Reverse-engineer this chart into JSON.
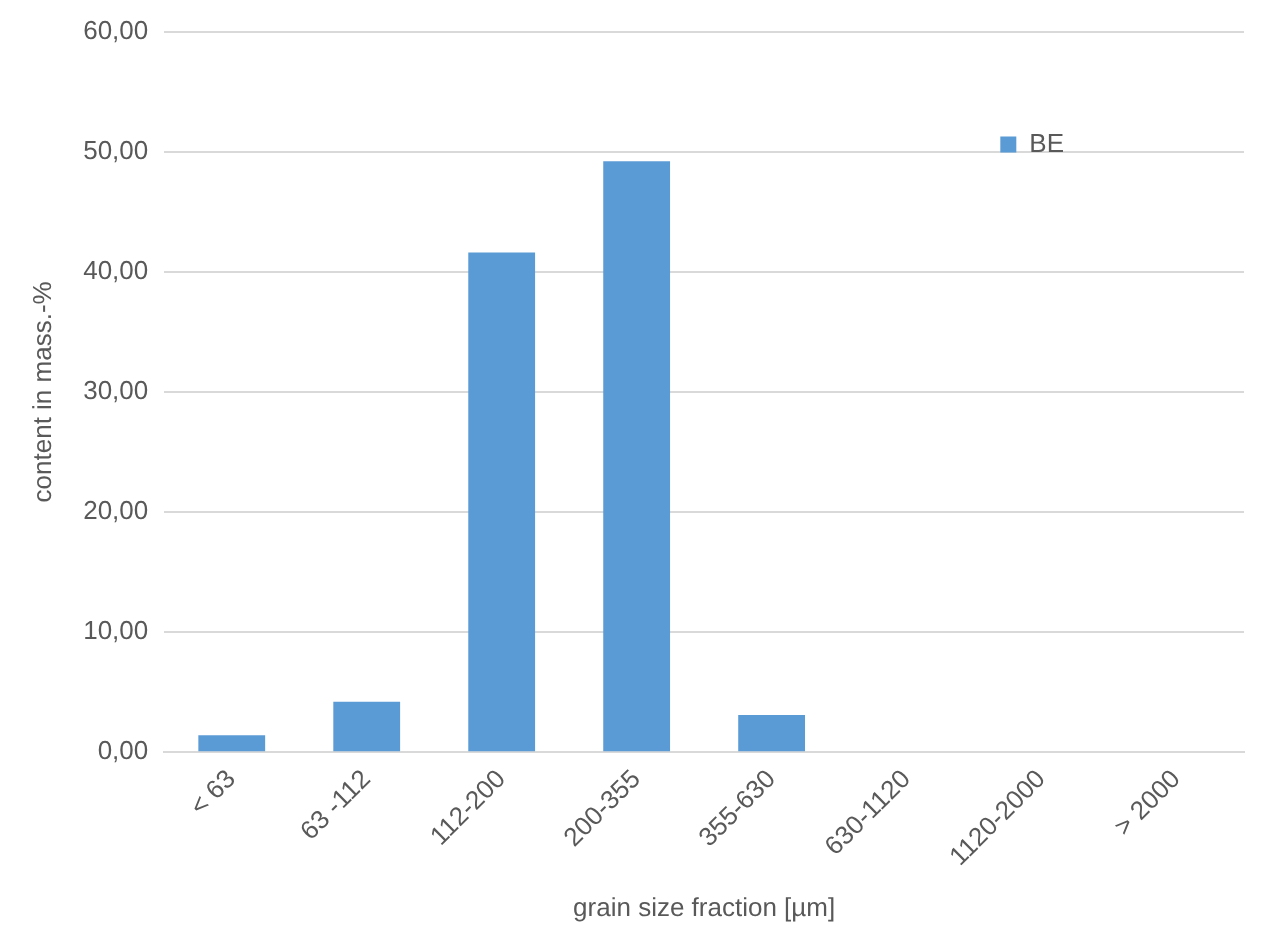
{
  "chart_data": {
    "type": "bar",
    "xlabel": "grain size fraction [µm]",
    "ylabel": "content in mass.-%",
    "categories": [
      "< 63",
      "63 -112",
      "112-200",
      "200-355",
      "355-630",
      "630-1120",
      "1120-2000",
      "> 2000"
    ],
    "series": [
      {
        "name": "BE",
        "color": "#5b9bd5",
        "values": [
          1.4,
          4.2,
          41.6,
          49.2,
          3.1,
          null,
          null,
          null
        ]
      }
    ],
    "ylim": [
      0,
      60
    ],
    "yticks": [
      {
        "value": 0,
        "label": "0,00"
      },
      {
        "value": 10,
        "label": "10,00"
      },
      {
        "value": 20,
        "label": "20,00"
      },
      {
        "value": 30,
        "label": "30,00"
      },
      {
        "value": 40,
        "label": "40,00"
      },
      {
        "value": 50,
        "label": "50,00"
      },
      {
        "value": 60,
        "label": "60,00"
      }
    ],
    "grid": "y",
    "legend": "top right"
  }
}
